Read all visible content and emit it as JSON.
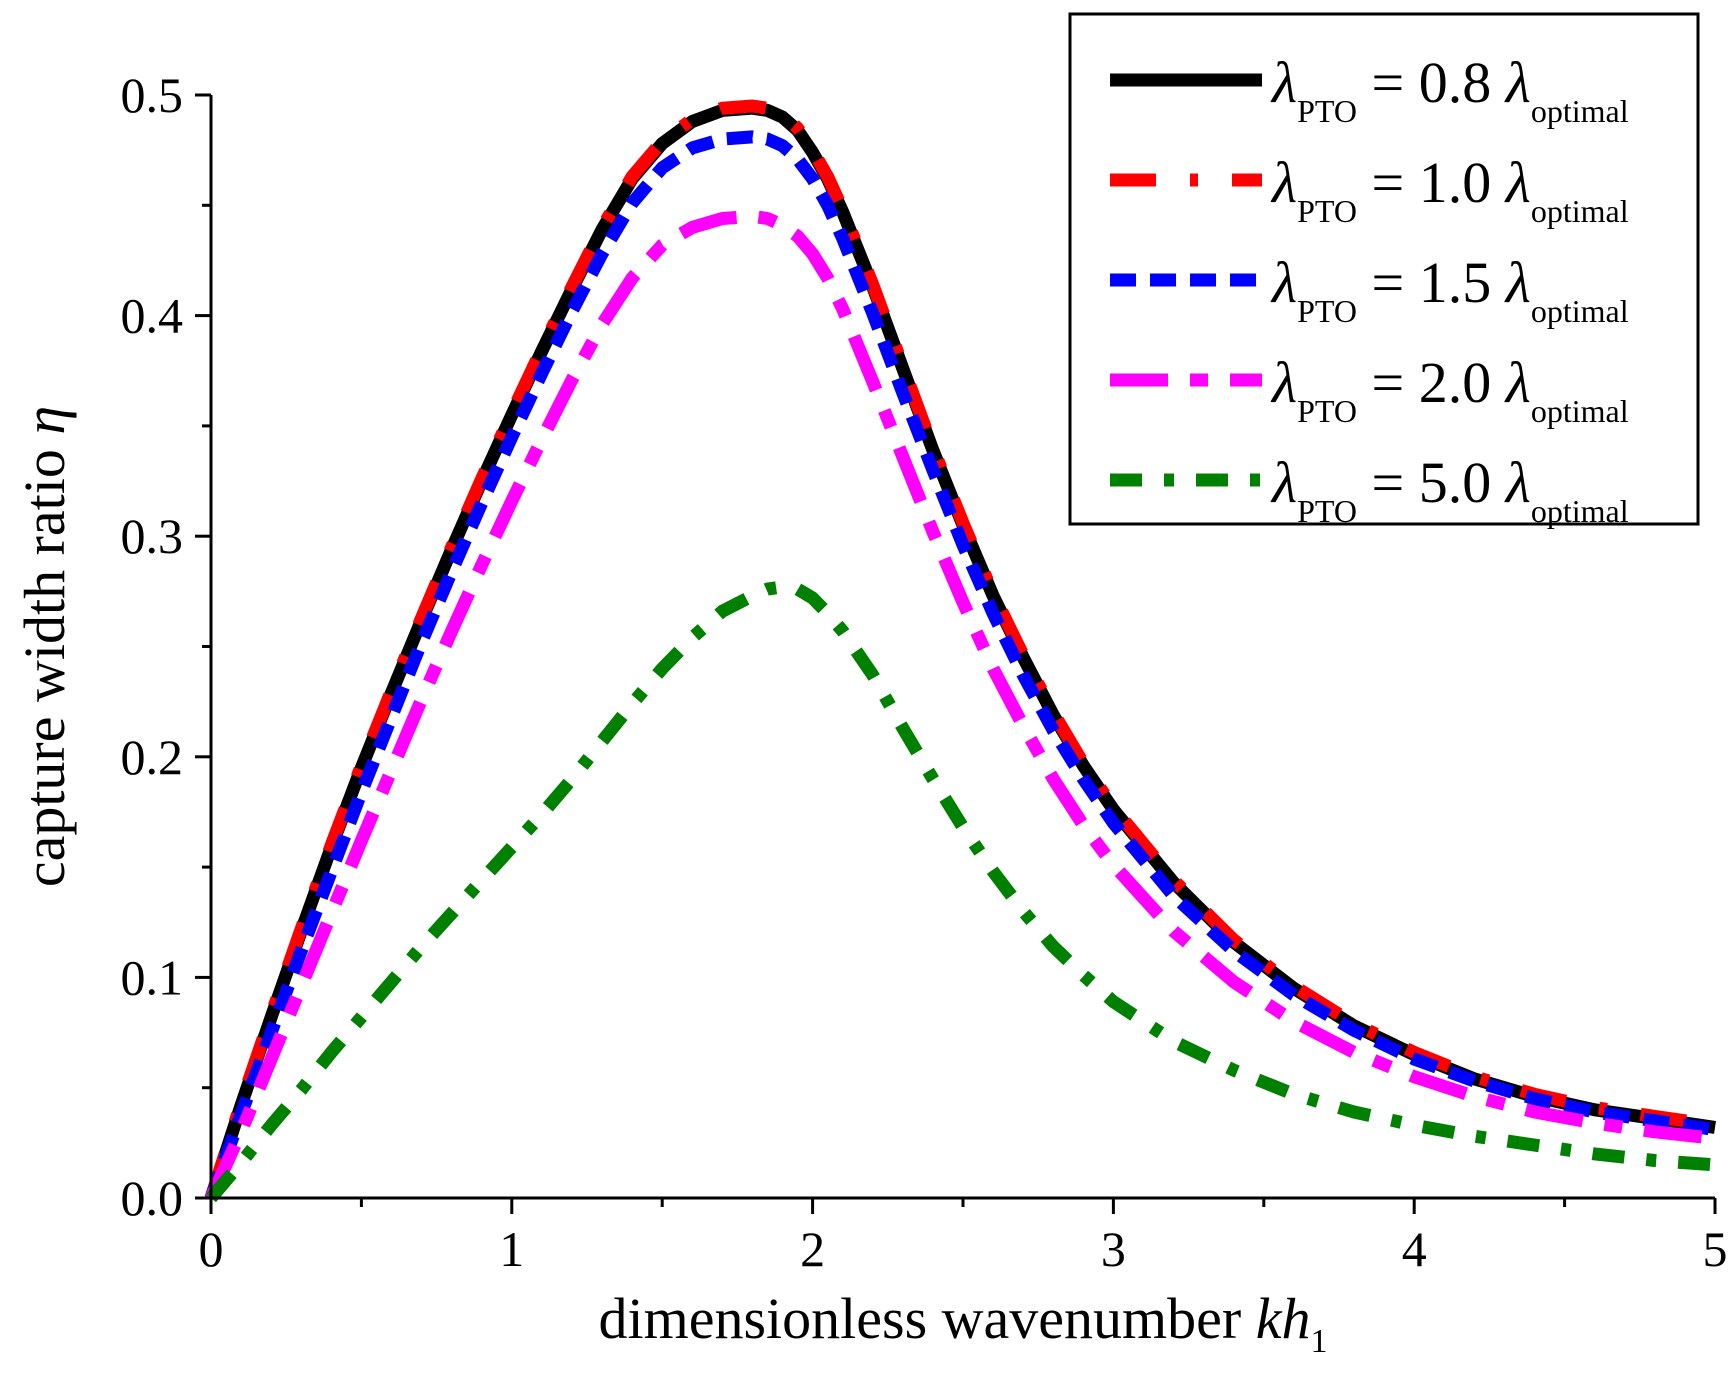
{
  "chart_data": {
    "type": "line",
    "title": "",
    "xlabel": "dimensionless wavenumber",
    "xlabel_var": "kh",
    "xlabel_sub": "1",
    "ylabel": "capture width ratio",
    "ylabel_var": "η",
    "xlim": [
      0,
      5
    ],
    "ylim": [
      0,
      0.5
    ],
    "xticks": [
      0,
      1,
      2,
      3,
      4,
      5
    ],
    "xtick_labels": [
      "0",
      "1",
      "2",
      "3",
      "4",
      "5"
    ],
    "yticks": [
      0.0,
      0.1,
      0.2,
      0.3,
      0.4,
      0.5
    ],
    "ytick_labels": [
      "0.0",
      "0.1",
      "0.2",
      "0.3",
      "0.4",
      "0.5"
    ],
    "grid": false,
    "legend_position": "top-right",
    "x": [
      0,
      0.1,
      0.2,
      0.3,
      0.4,
      0.5,
      0.6,
      0.7,
      0.8,
      0.9,
      1.0,
      1.1,
      1.2,
      1.3,
      1.4,
      1.5,
      1.6,
      1.7,
      1.8,
      1.85,
      1.9,
      1.95,
      2.0,
      2.05,
      2.1,
      2.2,
      2.3,
      2.4,
      2.5,
      2.6,
      2.7,
      2.8,
      2.9,
      3.0,
      3.2,
      3.4,
      3.6,
      3.8,
      4.0,
      4.2,
      4.4,
      4.6,
      4.8,
      5.0
    ],
    "series": [
      {
        "name": "λPTO = 0.8 λoptimal",
        "label_lambda": "λ",
        "label_sub1": "PTO",
        "label_eq": "= 0.8",
        "label_lambda2": "λ",
        "label_sub2": "optimal",
        "color": "#000000",
        "dash": "solid",
        "values": [
          0.0,
          0.042,
          0.082,
          0.121,
          0.159,
          0.195,
          0.229,
          0.262,
          0.294,
          0.325,
          0.355,
          0.384,
          0.412,
          0.439,
          0.462,
          0.478,
          0.488,
          0.493,
          0.494,
          0.493,
          0.49,
          0.484,
          0.474,
          0.462,
          0.447,
          0.413,
          0.376,
          0.339,
          0.305,
          0.273,
          0.245,
          0.219,
          0.196,
          0.176,
          0.143,
          0.116,
          0.095,
          0.078,
          0.065,
          0.054,
          0.046,
          0.04,
          0.036,
          0.032
        ]
      },
      {
        "name": "λPTO = 1.0 λoptimal",
        "label_lambda": "λ",
        "label_sub1": "PTO",
        "label_eq": "= 1.0",
        "label_lambda2": "λ",
        "label_sub2": "optimal",
        "color": "#ff0000",
        "dash": "long-dash-dot",
        "values": [
          0.0,
          0.043,
          0.083,
          0.122,
          0.16,
          0.196,
          0.23,
          0.263,
          0.295,
          0.326,
          0.356,
          0.385,
          0.413,
          0.44,
          0.463,
          0.479,
          0.489,
          0.494,
          0.495,
          0.494,
          0.491,
          0.485,
          0.475,
          0.463,
          0.448,
          0.414,
          0.377,
          0.34,
          0.306,
          0.274,
          0.246,
          0.22,
          0.197,
          0.177,
          0.144,
          0.117,
          0.096,
          0.079,
          0.066,
          0.055,
          0.047,
          0.041,
          0.037,
          0.033
        ]
      },
      {
        "name": "λPTO = 1.5 λoptimal",
        "label_lambda": "λ",
        "label_sub1": "PTO",
        "label_eq": "= 1.5",
        "label_lambda2": "λ",
        "label_sub2": "optimal",
        "color": "#0000ff",
        "dash": "dash",
        "values": [
          0.0,
          0.038,
          0.075,
          0.112,
          0.148,
          0.184,
          0.218,
          0.252,
          0.284,
          0.315,
          0.345,
          0.374,
          0.402,
          0.428,
          0.451,
          0.467,
          0.476,
          0.48,
          0.481,
          0.48,
          0.477,
          0.471,
          0.462,
          0.45,
          0.435,
          0.401,
          0.365,
          0.33,
          0.296,
          0.265,
          0.237,
          0.212,
          0.19,
          0.17,
          0.137,
          0.112,
          0.092,
          0.076,
          0.063,
          0.053,
          0.045,
          0.039,
          0.035,
          0.031
        ]
      },
      {
        "name": "λPTO = 2.0 λoptimal",
        "label_lambda": "λ",
        "label_sub1": "PTO",
        "label_eq": "= 2.0",
        "label_lambda2": "λ",
        "label_sub2": "optimal",
        "color": "#ff00ff",
        "dash": "long-dash-short",
        "values": [
          0.0,
          0.03,
          0.063,
          0.096,
          0.129,
          0.162,
          0.194,
          0.226,
          0.257,
          0.287,
          0.316,
          0.344,
          0.371,
          0.396,
          0.417,
          0.432,
          0.44,
          0.444,
          0.445,
          0.444,
          0.441,
          0.436,
          0.428,
          0.417,
          0.403,
          0.37,
          0.336,
          0.302,
          0.27,
          0.24,
          0.214,
          0.19,
          0.169,
          0.151,
          0.121,
          0.098,
          0.08,
          0.066,
          0.055,
          0.046,
          0.039,
          0.034,
          0.03,
          0.027
        ]
      },
      {
        "name": "λPTO = 5.0 λoptimal",
        "label_lambda": "λ",
        "label_sub1": "PTO",
        "label_eq": "= 5.0",
        "label_lambda2": "λ",
        "label_sub2": "optimal",
        "color": "#008000",
        "dash": "dash-dot",
        "values": [
          0.0,
          0.016,
          0.033,
          0.049,
          0.066,
          0.082,
          0.098,
          0.114,
          0.129,
          0.144,
          0.159,
          0.174,
          0.19,
          0.207,
          0.224,
          0.24,
          0.254,
          0.266,
          0.273,
          0.276,
          0.277,
          0.276,
          0.272,
          0.265,
          0.257,
          0.237,
          0.213,
          0.19,
          0.168,
          0.148,
          0.13,
          0.114,
          0.101,
          0.089,
          0.071,
          0.058,
          0.047,
          0.039,
          0.033,
          0.028,
          0.024,
          0.02,
          0.017,
          0.015
        ]
      }
    ]
  }
}
